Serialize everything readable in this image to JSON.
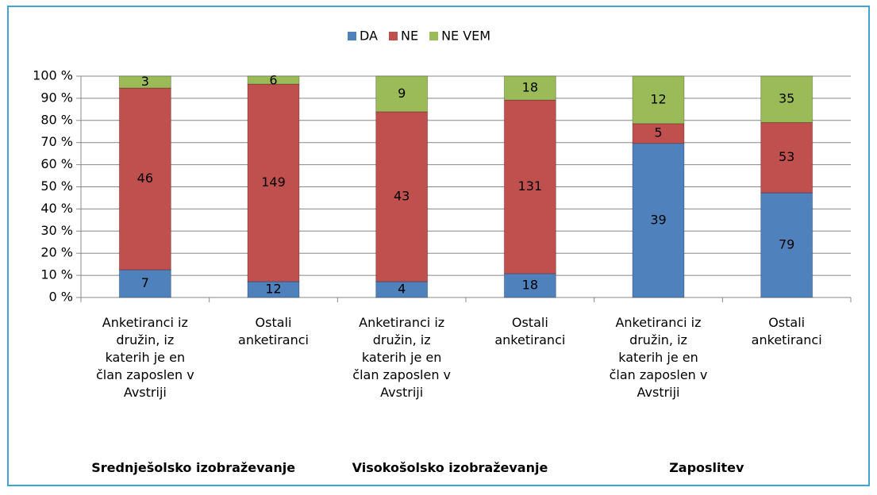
{
  "chart_data": {
    "type": "bar",
    "stacking": "percent",
    "categories": [
      "Anketiranci iz družin, iz katerih je en član zaposlen v Avstriji",
      "Ostali anketiranci",
      "Anketiranci iz družin, iz katerih je en član zaposlen v Avstriji",
      "Ostali anketiranci",
      "Anketiranci iz družin, iz katerih je en član zaposlen v Avstriji",
      "Ostali anketiranci"
    ],
    "group_labels": [
      "Srednješolsko izobraževanje",
      "Visokošolsko izobraževanje",
      "Zaposlitev"
    ],
    "series": [
      {
        "name": "DA",
        "color": "#4f81bd",
        "values": [
          7,
          12,
          4,
          18,
          39,
          79
        ]
      },
      {
        "name": "NE",
        "color": "#c0504d",
        "values": [
          46,
          149,
          43,
          131,
          5,
          53
        ]
      },
      {
        "name": "NE VEM",
        "color": "#9bbb59",
        "values": [
          3,
          6,
          9,
          18,
          12,
          35
        ]
      }
    ],
    "ylim": [
      0,
      100
    ],
    "yticks": [
      {
        "value": 0,
        "label": "0 %"
      },
      {
        "value": 10,
        "label": "10 %"
      },
      {
        "value": 20,
        "label": "20 %"
      },
      {
        "value": 30,
        "label": "30 %"
      },
      {
        "value": 40,
        "label": "40 %"
      },
      {
        "value": 50,
        "label": "50 %"
      },
      {
        "value": 60,
        "label": "60 %"
      },
      {
        "value": 70,
        "label": "70 %"
      },
      {
        "value": 80,
        "label": "80 %"
      },
      {
        "value": 90,
        "label": "90 %"
      },
      {
        "value": 100,
        "label": "100 %"
      }
    ],
    "grid": true,
    "legend": "top"
  }
}
